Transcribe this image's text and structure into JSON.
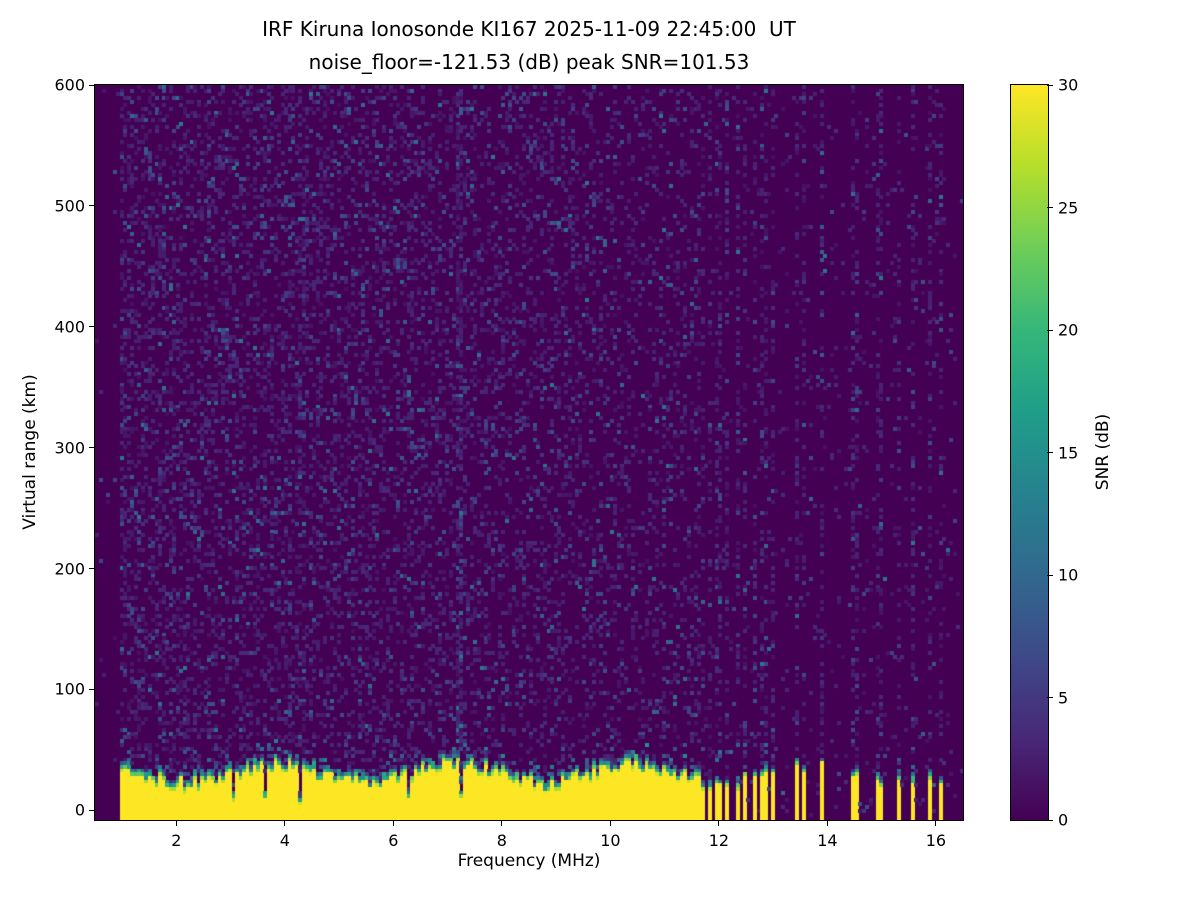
{
  "figure": {
    "title_line1": "IRF Kiruna Ionosonde KI167 2025-11-09 22:45:00  UT",
    "title_line2": "noise_floor=-121.53 (dB) peak SNR=101.53",
    "station_id": "KI167",
    "timestamp_ut": "2025-11-09 22:45:00",
    "noise_floor_db": -121.53,
    "peak_snr_db": 101.53,
    "background_color": "#ffffff",
    "text_color": "#000000"
  },
  "chart_data": {
    "type": "heatmap",
    "title": "IRF Kiruna Ionosonde KI167 2025-11-09 22:45:00  UT",
    "subtitle": "noise_floor=-121.53 (dB) peak SNR=101.53",
    "xlabel": "Frequency (MHz)",
    "ylabel": "Virtual range (km)",
    "colorbar_label": "SNR (dB)",
    "x_range_mhz": [
      0.5,
      16.5
    ],
    "y_range_km": [
      -8,
      600
    ],
    "x_ticks": [
      2,
      4,
      6,
      8,
      10,
      12,
      14,
      16
    ],
    "y_ticks": [
      0,
      100,
      200,
      300,
      400,
      500,
      600
    ],
    "colorbar_ticks": [
      0,
      5,
      10,
      15,
      20,
      25,
      30
    ],
    "snr_scale_db": [
      0,
      30
    ],
    "grid": false,
    "legend_position": "right-colorbar",
    "colormap": "viridis",
    "colormap_stops": [
      {
        "t": 0.0,
        "color": "#440154"
      },
      {
        "t": 0.111,
        "color": "#482878"
      },
      {
        "t": 0.222,
        "color": "#3e4989"
      },
      {
        "t": 0.333,
        "color": "#31688e"
      },
      {
        "t": 0.444,
        "color": "#26828e"
      },
      {
        "t": 0.556,
        "color": "#1f9e89"
      },
      {
        "t": 0.667,
        "color": "#35b779"
      },
      {
        "t": 0.778,
        "color": "#6ece58"
      },
      {
        "t": 0.889,
        "color": "#b5de2b"
      },
      {
        "t": 1.0,
        "color": "#fde725"
      }
    ],
    "features": {
      "description": "Ionogram: saturated yellow ground-clutter band (SNR ~30 dB) below ~25-45 km virtual range across the sweep with a green/teal fringe on top; speckled dark-purple noise background above up to 600 km; continuous sweep 0.95-11.62 MHz, dense comb of narrow transmitted stripes 11.62-13.1 MHz, isolated stripes at higher frequencies; narrow dark notch frequencies cut the clutter band; no ionospheric echo traces visible.",
      "sweep_start_mhz": 0.95,
      "sweep_end_mhz": 16.35,
      "striped_sweep_mhz": [
        11.62,
        13.1
      ],
      "stripe_spacing_mhz": 0.165,
      "stripe_width_mhz": 0.085,
      "isolated_stripes_mhz": [
        13.45,
        13.55,
        13.9,
        14.45,
        14.55,
        14.95,
        15.3,
        15.55,
        15.9,
        16.1
      ],
      "notch_frequencies_mhz": [
        3.05,
        3.65,
        4.3,
        6.3,
        7.25
      ],
      "clutter_band_top_km": {
        "mean": 32,
        "min": 20,
        "max": 48
      },
      "clutter_band_snr_db": 30,
      "background_snr_db": [
        0,
        12
      ],
      "noise_columns": [
        {
          "mhz": 7.2,
          "boost": 0.35
        },
        {
          "mhz": 4.3,
          "boost": 0.15
        },
        {
          "mhz": 6.3,
          "boost": 0.1
        }
      ]
    }
  }
}
